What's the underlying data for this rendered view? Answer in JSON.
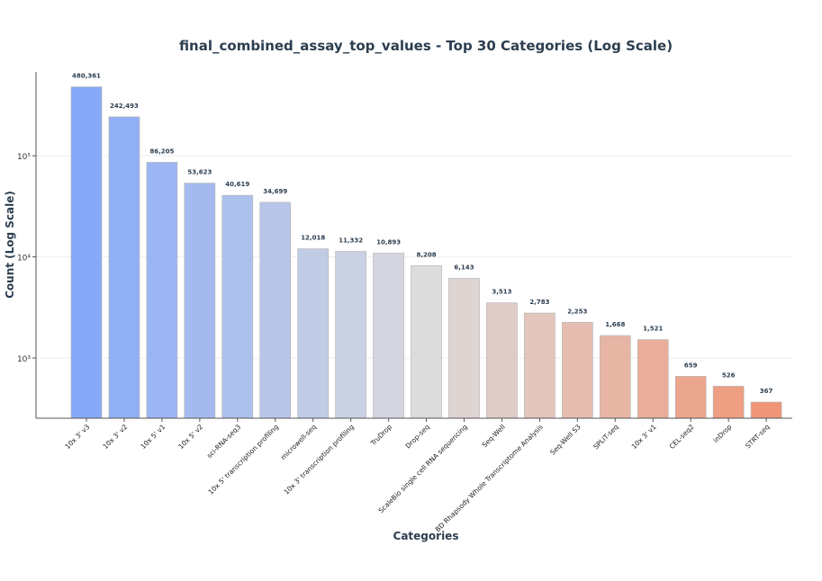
{
  "chart_data": {
    "type": "bar",
    "title": "final_combined_assay_top_values - Top 30 Categories (Log Scale)",
    "xlabel": "Categories",
    "ylabel": "Count (Log Scale)",
    "yscale": "log",
    "ylim": [
      254,
      674000
    ],
    "yticks": [
      {
        "value": 1000,
        "label": "10³"
      },
      {
        "value": 10000,
        "label": "10⁴"
      },
      {
        "value": 100000,
        "label": "10⁵"
      }
    ],
    "grid": true,
    "categories": [
      "10x 3' v3",
      "10x 3' v2",
      "10x 5' v1",
      "10x 5' v2",
      "sci-RNA-seq3",
      "10x 5' transcription profiling",
      "microwell-seq",
      "10x 3' transcription profiling",
      "TruDrop",
      "Drop-seq",
      "ScaleBio single cell RNA sequencing",
      "Seq-Well",
      "BD Rhapsody Whole Transcriptome Analysis",
      "Seq-Well S3",
      "SPLiT-seq",
      "10x 3' v1",
      "CEL-seq2",
      "inDrop",
      "STRT-seq"
    ],
    "values": [
      480361,
      242493,
      86205,
      53623,
      40619,
      34699,
      12018,
      11332,
      10893,
      8208,
      6143,
      3513,
      2783,
      2253,
      1668,
      1521,
      659,
      526,
      367
    ],
    "value_labels": [
      "480,361",
      "242,493",
      "86,205",
      "53,623",
      "40,619",
      "34,699",
      "12,018",
      "11,332",
      "10,893",
      "8,208",
      "6,143",
      "3,513",
      "2,783",
      "2,253",
      "1,668",
      "1,521",
      "659",
      "526",
      "367"
    ],
    "colors": {
      "start": "#88a9f8",
      "mid": "#dcdcdc",
      "end": "#ef9678",
      "title": "#2c3e50"
    }
  }
}
